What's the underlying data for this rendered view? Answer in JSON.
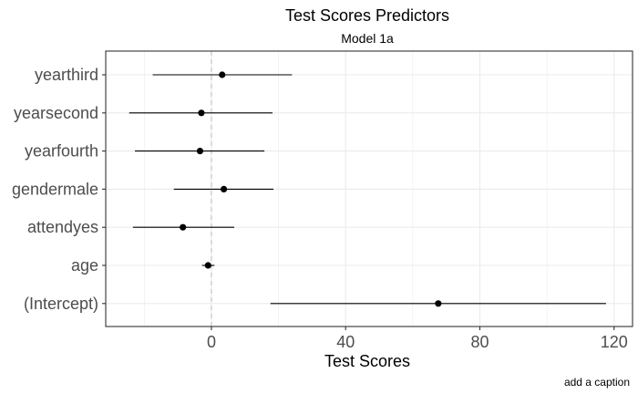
{
  "chart_data": {
    "type": "scatter",
    "title": "Test Scores Predictors",
    "subtitle": "Model 1a",
    "xlabel": "Test Scores",
    "ylabel": "",
    "caption": "add a caption",
    "xlim": [
      -31.5,
      125.5
    ],
    "xticks": [
      0,
      40,
      80,
      120
    ],
    "grid": true,
    "reference_line": 0,
    "terms": [
      {
        "term": "yearthird",
        "estimate": 3.2,
        "low": -17.5,
        "high": 24.0
      },
      {
        "term": "yearsecond",
        "estimate": -3.0,
        "low": -24.5,
        "high": 18.2
      },
      {
        "term": "yearfourth",
        "estimate": -3.4,
        "low": -22.8,
        "high": 15.8
      },
      {
        "term": "gendermale",
        "estimate": 3.7,
        "low": -11.2,
        "high": 18.5
      },
      {
        "term": "attendyes",
        "estimate": -8.5,
        "low": -23.4,
        "high": 6.8
      },
      {
        "term": "age",
        "estimate": -1.0,
        "low": -2.8,
        "high": 0.9
      },
      {
        "term": "(Intercept)",
        "estimate": 67.6,
        "low": 17.6,
        "high": 117.6
      }
    ],
    "colors": {
      "point": "#000000",
      "bar": "#000000",
      "grid": "#ebebeb",
      "panel_border": "#333333",
      "ref_line": "#bebebe"
    }
  }
}
